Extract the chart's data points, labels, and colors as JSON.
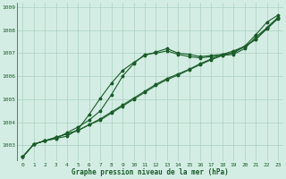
{
  "title": "Graphe pression niveau de la mer (hPa)",
  "background_color": "#d4ede4",
  "grid_color": "#aacfbf",
  "line_color": "#1a5c2a",
  "xlim": [
    -0.5,
    23.5
  ],
  "ylim": [
    1002.3,
    1009.2
  ],
  "xticks": [
    0,
    1,
    2,
    3,
    4,
    5,
    6,
    7,
    8,
    9,
    10,
    11,
    12,
    13,
    14,
    15,
    16,
    17,
    18,
    19,
    20,
    21,
    22,
    23
  ],
  "yticks": [
    1003,
    1004,
    1005,
    1006,
    1007,
    1008,
    1009
  ],
  "series_straight": [
    1002.5,
    1003.05,
    1003.2,
    1003.35,
    1003.5,
    1003.65,
    1003.9,
    1004.15,
    1004.45,
    1004.75,
    1005.05,
    1005.35,
    1005.65,
    1005.9,
    1006.1,
    1006.3,
    1006.55,
    1006.75,
    1006.95,
    1007.1,
    1007.3,
    1007.6,
    1008.1,
    1008.55
  ],
  "series_straight2": [
    1002.5,
    1003.05,
    1003.2,
    1003.35,
    1003.5,
    1003.65,
    1003.9,
    1004.1,
    1004.4,
    1004.7,
    1005.0,
    1005.3,
    1005.6,
    1005.85,
    1006.05,
    1006.28,
    1006.5,
    1006.72,
    1006.9,
    1007.05,
    1007.28,
    1007.6,
    1008.05,
    1008.5
  ],
  "series_peaked": [
    1002.5,
    1003.05,
    1003.2,
    1003.3,
    1003.55,
    1003.8,
    1004.1,
    1004.5,
    1005.2,
    1006.0,
    1006.55,
    1006.95,
    1007.0,
    1007.1,
    1006.95,
    1006.85,
    1006.8,
    1006.85,
    1006.9,
    1006.95,
    1007.2,
    1007.7,
    1008.1,
    1008.55
  ],
  "series_peaked2": [
    1002.5,
    1003.05,
    1003.2,
    1003.3,
    1003.4,
    1003.7,
    1004.35,
    1005.05,
    1005.7,
    1006.25,
    1006.6,
    1006.9,
    1007.05,
    1007.2,
    1007.0,
    1006.95,
    1006.85,
    1006.9,
    1006.95,
    1007.0,
    1007.3,
    1007.8,
    1008.35,
    1008.65
  ]
}
